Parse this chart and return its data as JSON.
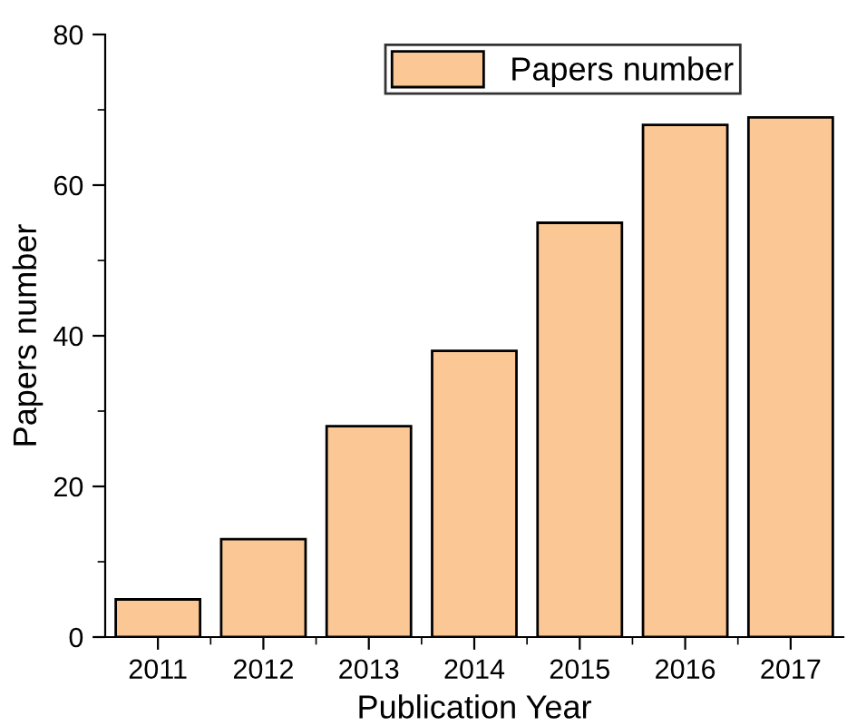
{
  "chart_data": {
    "type": "bar",
    "xlabel": "Publication Year",
    "ylabel": "Papers number",
    "categories": [
      "2011",
      "2012",
      "2013",
      "2014",
      "2015",
      "2016",
      "2017"
    ],
    "series": [
      {
        "name": "Papers number",
        "color": "#fbc895",
        "values": [
          5,
          13,
          28,
          38,
          55,
          68,
          69
        ]
      }
    ],
    "ylim": [
      0,
      80
    ],
    "yticks": [
      0,
      {
        "value": 10,
        "label": null
      },
      20,
      {
        "value": 30,
        "label": null
      },
      40,
      {
        "value": 50,
        "label": null
      },
      60,
      {
        "value": 70,
        "label": null
      },
      80
    ],
    "grid": false,
    "legend": "top"
  }
}
